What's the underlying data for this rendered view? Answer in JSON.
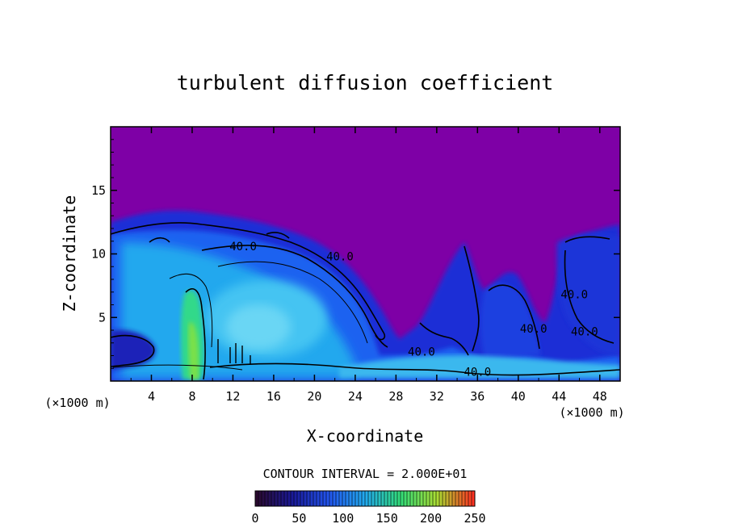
{
  "chart_data": {
    "type": "heatmap",
    "title": "turbulent diffusion coefficient",
    "xlabel": "X-coordinate",
    "ylabel": "Z-coordinate",
    "x_unit": "(×1000 m)",
    "z_unit": "(×1000 m)",
    "xlim": [
      0,
      50
    ],
    "ylim": [
      0,
      20
    ],
    "x_ticks": [
      4,
      8,
      12,
      16,
      20,
      24,
      28,
      32,
      36,
      40,
      44,
      48
    ],
    "y_ticks": [
      5,
      10,
      15
    ],
    "contour_interval_text": "CONTOUR INTERVAL = 2.000E+01",
    "contour_labels": [
      {
        "text": "40.0",
        "x": 13.0,
        "z": 10.3
      },
      {
        "text": "40.0",
        "x": 22.5,
        "z": 9.5
      },
      {
        "text": "40.0",
        "x": 30.5,
        "z": 2.0
      },
      {
        "text": "40.0",
        "x": 36.0,
        "z": 0.4
      },
      {
        "text": "40.0",
        "x": 41.5,
        "z": 3.8
      },
      {
        "text": "40.0",
        "x": 45.5,
        "z": 6.5
      },
      {
        "text": "40.0",
        "x": 46.5,
        "z": 3.6
      }
    ],
    "colorbar": {
      "min": 0,
      "max": 250,
      "ticks": [
        0,
        50,
        100,
        150,
        200,
        250
      ],
      "colors": [
        "#2a0a30",
        "#1a1a9a",
        "#2255ee",
        "#22aaee",
        "#33dd77",
        "#aadd33",
        "#ff3322"
      ]
    },
    "background_color": "#7e00a6"
  }
}
